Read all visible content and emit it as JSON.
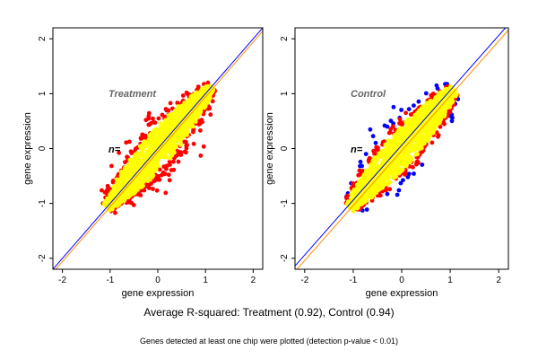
{
  "chart_data": [
    {
      "type": "scatter",
      "panel": "left",
      "title": "Treatment",
      "annotation": "n=",
      "xlabel": "gene expression",
      "ylabel": "gene expression",
      "xlim": [
        -2.2,
        2.2
      ],
      "ylim": [
        -2.2,
        2.2
      ],
      "xticks": [
        -2,
        -1,
        0,
        1,
        2
      ],
      "yticks": [
        -2,
        -1,
        0,
        1,
        2
      ],
      "point_colors": [
        "#ffff00",
        "#ff0000"
      ],
      "cloud": {
        "x_range": [
          -1.1,
          1.15
        ],
        "y_range": [
          -1.15,
          1.2
        ]
      },
      "lines": [
        {
          "color": "#0000ff",
          "intercept": 0.0,
          "slope": 1.0
        },
        {
          "color": "#ff8c00",
          "intercept": -0.06,
          "slope": 1.0
        }
      ]
    },
    {
      "type": "scatter",
      "panel": "right",
      "title": "Control",
      "annotation": "n=",
      "xlabel": "gene expression",
      "ylabel": "gene expression",
      "xlim": [
        -2.2,
        2.2
      ],
      "ylim": [
        -2.2,
        2.2
      ],
      "xticks": [
        -2,
        -1,
        0,
        1,
        2
      ],
      "yticks": [
        -2,
        -1,
        0,
        1,
        2
      ],
      "point_colors": [
        "#ffff00",
        "#ff0000",
        "#0000ff"
      ],
      "cloud": {
        "x_range": [
          -1.1,
          1.1
        ],
        "y_range": [
          -1.15,
          1.2
        ]
      },
      "lines": [
        {
          "color": "#0000ff",
          "intercept": 0.06,
          "slope": 1.0
        },
        {
          "color": "#ff8c00",
          "intercept": -0.04,
          "slope": 1.0
        }
      ]
    }
  ],
  "captions": {
    "main": "Average R-squared: Treatment (0.92), Control (0.94)",
    "note": "Genes detected at least one chip were plotted (detection p-value < 0.01)"
  }
}
